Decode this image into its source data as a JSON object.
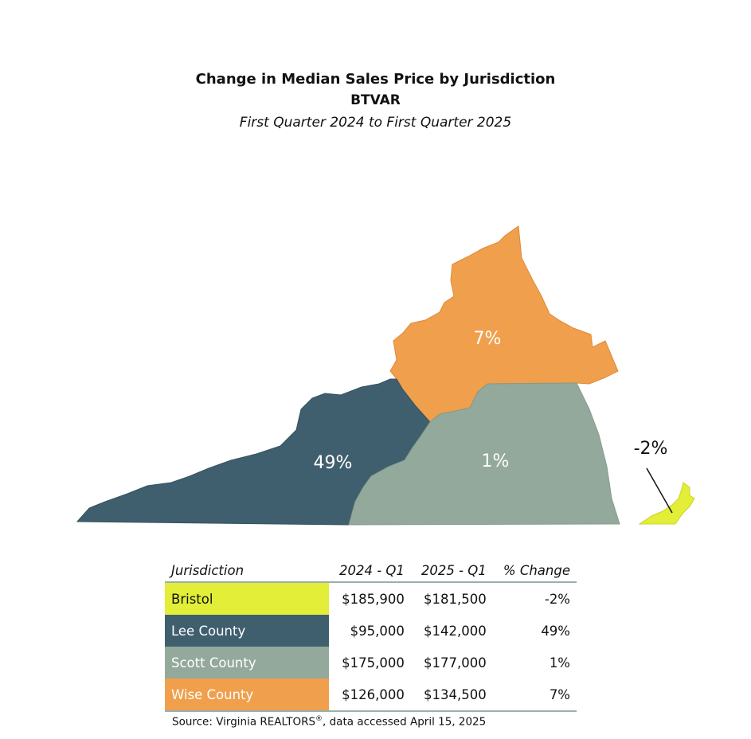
{
  "header": {
    "title": "Change in Median Sales Price by Jurisdiction",
    "subtitle": "BTVAR",
    "period": "First Quarter 2024 to First Quarter 2025"
  },
  "map": {
    "regions": [
      {
        "name": "Wise County",
        "label": "7%",
        "color": "#f09f4d"
      },
      {
        "name": "Lee County",
        "label": "49%",
        "color": "#3f5f6e"
      },
      {
        "name": "Scott County",
        "label": "1%",
        "color": "#93a99c"
      },
      {
        "name": "Bristol",
        "label": "-2%",
        "color": "#e2ee37"
      }
    ]
  },
  "table": {
    "headers": [
      "Jurisdiction",
      "2024 - Q1",
      "2025 - Q1",
      "% Change"
    ],
    "rows": [
      {
        "name": "Bristol",
        "q1_2024": "$185,900",
        "q1_2025": "$181,500",
        "change": "-2%",
        "color": "#e2ee37",
        "text_color": "#111111"
      },
      {
        "name": "Lee County",
        "q1_2024": "$95,000",
        "q1_2025": "$142,000",
        "change": "49%",
        "color": "#3f5f6e",
        "text_color": "#ffffff"
      },
      {
        "name": "Scott County",
        "q1_2024": "$175,000",
        "q1_2025": "$177,000",
        "change": "1%",
        "color": "#93a99c",
        "text_color": "#ffffff"
      },
      {
        "name": "Wise County",
        "q1_2024": "$126,000",
        "q1_2025": "$134,500",
        "change": "7%",
        "color": "#f09f4d",
        "text_color": "#ffffff"
      }
    ]
  },
  "footer": {
    "source_prefix": "Source: Virginia REALTORS",
    "source_mark": "®",
    "source_suffix": ", data accessed April 15, 2025"
  }
}
